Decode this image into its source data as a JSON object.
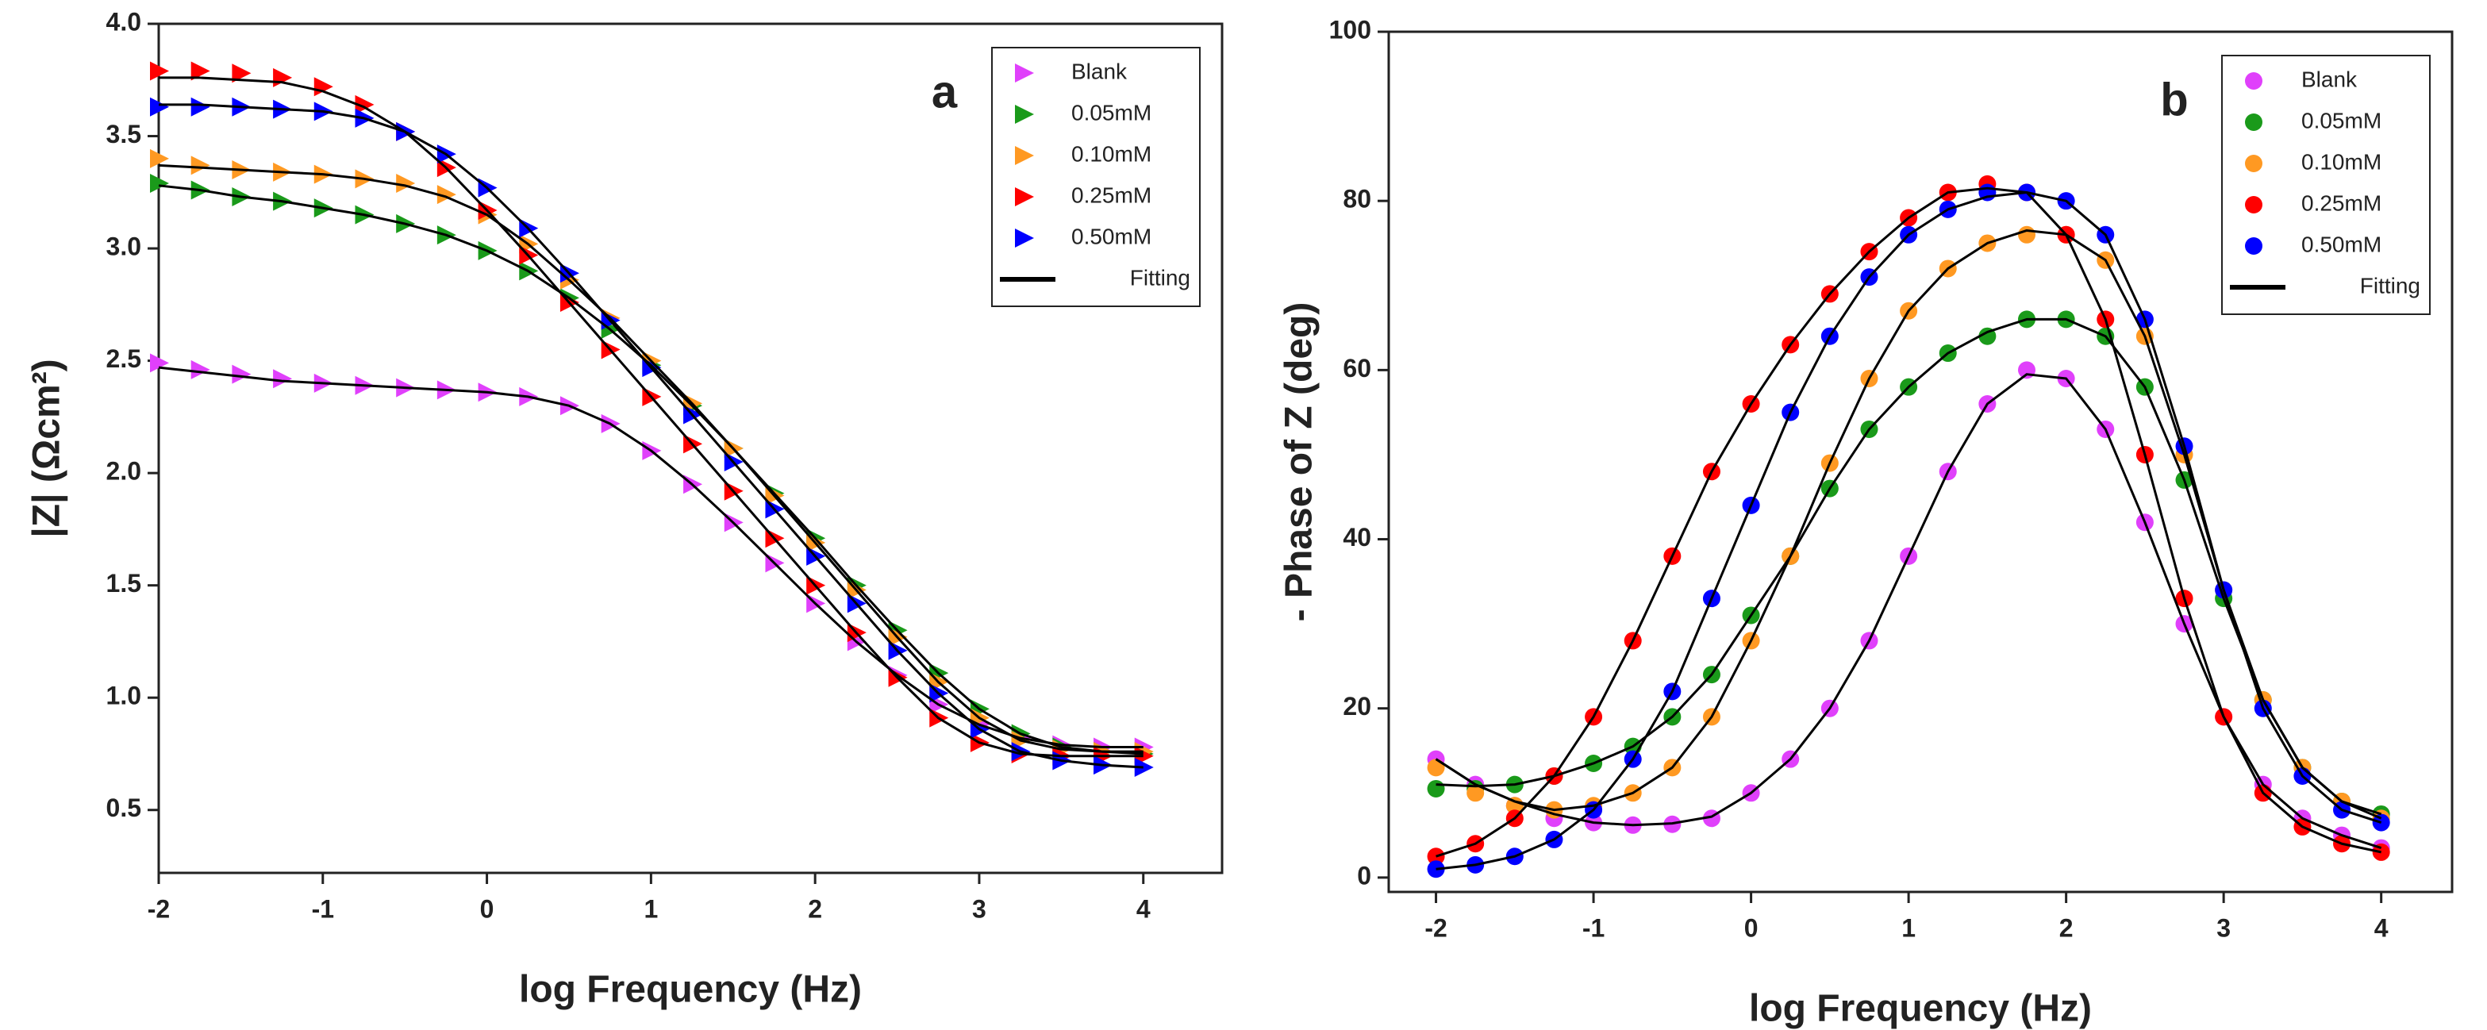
{
  "chart_data": [
    {
      "type": "scatter",
      "label": "a",
      "marker": "triangle",
      "xlabel": "log Frequency (Hz)",
      "ylabel": "|Z| (Ωcm²)",
      "xlim": [
        -2,
        4.48
      ],
      "ylim": [
        0.22,
        4.0
      ],
      "xticks": [
        -2,
        -1,
        0,
        1,
        2,
        3,
        4
      ],
      "yticks": [
        0.5,
        {
          "value": 1,
          "label": "1.0"
        },
        1.5,
        {
          "value": 2,
          "label": "2.0"
        },
        2.5,
        {
          "value": 3,
          "label": "3.0"
        },
        3.5,
        {
          "value": 4,
          "label": "4.0"
        }
      ],
      "x": [
        -2,
        -1.75,
        -1.5,
        -1.25,
        -1,
        -0.75,
        -0.5,
        -0.25,
        0,
        0.25,
        0.5,
        0.75,
        1,
        1.25,
        1.5,
        1.75,
        2,
        2.25,
        2.5,
        2.75,
        3,
        3.25,
        3.5,
        3.75,
        4
      ],
      "series": [
        {
          "name": "Blank",
          "color": "#e040fb",
          "values": [
            2.49,
            2.46,
            2.44,
            2.42,
            2.4,
            2.39,
            2.38,
            2.37,
            2.36,
            2.34,
            2.3,
            2.22,
            2.1,
            1.95,
            1.78,
            1.6,
            1.42,
            1.25,
            1.1,
            0.97,
            0.88,
            0.82,
            0.79,
            0.78,
            0.78
          ]
        },
        {
          "name": "0.05mM",
          "color": "#1a9a1a",
          "values": [
            3.29,
            3.26,
            3.23,
            3.21,
            3.18,
            3.15,
            3.11,
            3.06,
            2.99,
            2.9,
            2.78,
            2.64,
            2.48,
            2.3,
            2.11,
            1.91,
            1.71,
            1.5,
            1.3,
            1.11,
            0.95,
            0.84,
            0.78,
            0.76,
            0.75
          ]
        },
        {
          "name": "0.10mM",
          "color": "#ff9922",
          "values": [
            3.4,
            3.37,
            3.35,
            3.34,
            3.33,
            3.31,
            3.29,
            3.24,
            3.15,
            3.02,
            2.86,
            2.69,
            2.5,
            2.31,
            2.11,
            1.9,
            1.69,
            1.48,
            1.27,
            1.07,
            0.91,
            0.81,
            0.77,
            0.76,
            0.76
          ]
        },
        {
          "name": "0.25mM",
          "color": "#ff0000",
          "values": [
            3.79,
            3.79,
            3.78,
            3.76,
            3.72,
            3.64,
            3.52,
            3.36,
            3.17,
            2.97,
            2.76,
            2.55,
            2.34,
            2.13,
            1.92,
            1.71,
            1.5,
            1.29,
            1.09,
            0.91,
            0.8,
            0.75,
            0.74,
            0.74,
            0.74
          ]
        },
        {
          "name": "0.50mM",
          "color": "#0000ff",
          "values": [
            3.63,
            3.63,
            3.63,
            3.62,
            3.61,
            3.58,
            3.52,
            3.42,
            3.27,
            3.09,
            2.89,
            2.68,
            2.47,
            2.26,
            2.05,
            1.84,
            1.63,
            1.42,
            1.21,
            1.02,
            0.86,
            0.76,
            0.72,
            0.7,
            0.69
          ]
        }
      ],
      "fit": {
        "name": "Fitting",
        "color": "#000000",
        "series": [
          {
            "values": [
              2.47,
              2.45,
              2.43,
              2.41,
              2.4,
              2.39,
              2.38,
              2.37,
              2.36,
              2.34,
              2.3,
              2.22,
              2.1,
              1.95,
              1.78,
              1.6,
              1.42,
              1.25,
              1.1,
              0.97,
              0.88,
              0.82,
              0.79,
              0.78,
              0.78
            ]
          },
          {
            "values": [
              3.28,
              3.26,
              3.23,
              3.21,
              3.18,
              3.15,
              3.11,
              3.06,
              2.99,
              2.9,
              2.78,
              2.64,
              2.48,
              2.3,
              2.11,
              1.91,
              1.71,
              1.5,
              1.3,
              1.11,
              0.95,
              0.84,
              0.78,
              0.76,
              0.75
            ]
          },
          {
            "values": [
              3.37,
              3.36,
              3.35,
              3.34,
              3.33,
              3.31,
              3.28,
              3.23,
              3.15,
              3.02,
              2.86,
              2.69,
              2.5,
              2.31,
              2.11,
              1.9,
              1.69,
              1.48,
              1.27,
              1.07,
              0.91,
              0.81,
              0.77,
              0.76,
              0.76
            ]
          },
          {
            "values": [
              3.76,
              3.76,
              3.75,
              3.74,
              3.7,
              3.63,
              3.52,
              3.36,
              3.17,
              2.97,
              2.76,
              2.55,
              2.34,
              2.13,
              1.92,
              1.71,
              1.5,
              1.29,
              1.09,
              0.91,
              0.8,
              0.75,
              0.74,
              0.74,
              0.74
            ]
          },
          {
            "values": [
              3.64,
              3.64,
              3.63,
              3.62,
              3.61,
              3.58,
              3.52,
              3.42,
              3.27,
              3.09,
              2.89,
              2.68,
              2.47,
              2.26,
              2.05,
              1.84,
              1.63,
              1.42,
              1.21,
              1.02,
              0.86,
              0.76,
              0.72,
              0.7,
              0.69
            ]
          }
        ]
      }
    },
    {
      "type": "scatter",
      "label": "b",
      "marker": "circle",
      "xlabel": "log Frequency (Hz)",
      "ylabel": "- Phase of Z (deg)",
      "xlim": [
        -2.3,
        4.45
      ],
      "ylim": [
        -1.7,
        100
      ],
      "xticks": [
        -2,
        -1,
        0,
        1,
        2,
        3,
        4
      ],
      "yticks": [
        0,
        20,
        40,
        60,
        80,
        100
      ],
      "x": [
        -2,
        -1.75,
        -1.5,
        -1.25,
        -1,
        -0.75,
        -0.5,
        -0.25,
        0,
        0.25,
        0.5,
        0.75,
        1,
        1.25,
        1.5,
        1.75,
        2,
        2.25,
        2.5,
        2.75,
        3,
        3.25,
        3.5,
        3.75,
        4
      ],
      "series": [
        {
          "name": "Blank",
          "color": "#e040fb",
          "values": [
            14,
            11,
            8.5,
            7,
            6.5,
            6.2,
            6.3,
            7,
            10,
            14,
            20,
            28,
            38,
            48,
            56,
            60,
            59,
            53,
            42,
            30,
            19,
            11,
            7,
            5,
            3.5
          ]
        },
        {
          "name": "0.05mM",
          "color": "#1a9a1a",
          "values": [
            10.5,
            10.5,
            11,
            12,
            13.5,
            15.5,
            19,
            24,
            31,
            38,
            46,
            53,
            58,
            62,
            64,
            66,
            66,
            64,
            58,
            47,
            33,
            21,
            13,
            9,
            7.5
          ]
        },
        {
          "name": "0.10mM",
          "color": "#ff9922",
          "values": [
            13,
            10,
            8.5,
            8,
            8.5,
            10,
            13,
            19,
            28,
            38,
            49,
            59,
            67,
            72,
            75,
            76,
            76,
            73,
            64,
            50,
            34,
            21,
            13,
            9,
            7
          ]
        },
        {
          "name": "0.25mM",
          "color": "#ff0000",
          "values": [
            2.5,
            4,
            7,
            12,
            19,
            28,
            38,
            48,
            56,
            63,
            69,
            74,
            78,
            81,
            82,
            81,
            76,
            66,
            50,
            33,
            19,
            10,
            6,
            4,
            3
          ]
        },
        {
          "name": "0.50mM",
          "color": "#0000ff",
          "values": [
            1,
            1.5,
            2.5,
            4.5,
            8,
            14,
            22,
            33,
            44,
            55,
            64,
            71,
            76,
            79,
            81,
            81,
            80,
            76,
            66,
            51,
            34,
            20,
            12,
            8,
            6.5
          ]
        }
      ],
      "fit": {
        "name": "Fitting",
        "color": "#000000",
        "series": [
          {
            "values": [
              14,
              11,
              9,
              7.5,
              6.5,
              6.2,
              6.4,
              7.2,
              10,
              14,
              20,
              28,
              38,
              48,
              56,
              59.5,
              59,
              53,
              42,
              30,
              19,
              11,
              7,
              5,
              3.5
            ]
          },
          {
            "values": [
              11,
              10.8,
              11,
              12,
              13.5,
              15.5,
              19,
              24,
              31,
              38,
              46,
              53,
              58,
              62,
              64.5,
              66,
              66,
              64,
              58,
              47,
              33,
              21,
              13,
              9,
              7.5
            ]
          },
          {
            "values": [
              14,
              11,
              9,
              8,
              8.5,
              10,
              13,
              19,
              28,
              38,
              49,
              59,
              67,
              72,
              75,
              76.5,
              76,
              73,
              64,
              50,
              34,
              21,
              13,
              9,
              7
            ]
          },
          {
            "values": [
              2.5,
              4,
              7,
              12,
              19,
              28,
              38,
              48,
              56,
              63,
              69,
              74,
              78,
              81,
              81.5,
              81,
              76,
              66,
              50,
              33,
              19,
              10,
              6,
              4,
              3
            ]
          },
          {
            "values": [
              1,
              1.5,
              2.5,
              4.5,
              8,
              14,
              22,
              33,
              44,
              55,
              64,
              71,
              76,
              79,
              80.5,
              81,
              80,
              76,
              66,
              51,
              34,
              20,
              12,
              8,
              6.5
            ]
          }
        ]
      }
    }
  ]
}
